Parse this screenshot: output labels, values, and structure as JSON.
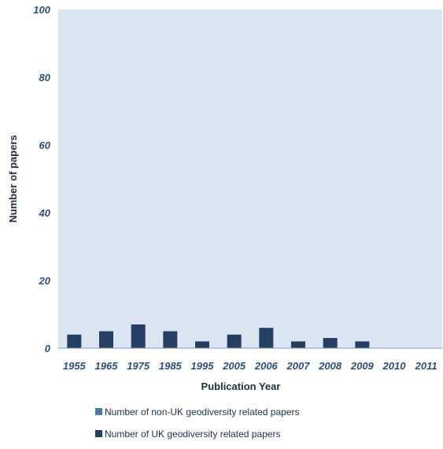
{
  "chart_data": {
    "type": "bar",
    "categories": [
      "1955",
      "1965",
      "1975",
      "1985",
      "1995",
      "2005",
      "2006",
      "2007",
      "2008",
      "2009",
      "2010",
      "2011"
    ],
    "series": [
      {
        "name": "Number of UK geodiversity related papers",
        "values": [
          4,
          5,
          7,
          5,
          2,
          4,
          6,
          2,
          3,
          2,
          0,
          0
        ],
        "color": "#243f63"
      },
      {
        "name": "Number of non-UK geodiversity related papers",
        "values": [
          0,
          0,
          0,
          0,
          0,
          0,
          0,
          0,
          0,
          0,
          0,
          0
        ],
        "color": "#4a7ab0"
      }
    ],
    "xlabel": "Publication Year",
    "ylabel": "Number of papers",
    "ylim": [
      0,
      100
    ],
    "yticks": [
      0,
      20,
      40,
      60,
      80,
      100
    ],
    "grid": false,
    "plot_background": "#dce6f2",
    "legend_position": "bottom"
  },
  "legend": {
    "items": [
      {
        "label": "Number of non-UK geodiversity related papers",
        "color": "#4a7ab0"
      },
      {
        "label": "Number of UK geodiversity related papers",
        "color": "#243f63"
      }
    ]
  }
}
